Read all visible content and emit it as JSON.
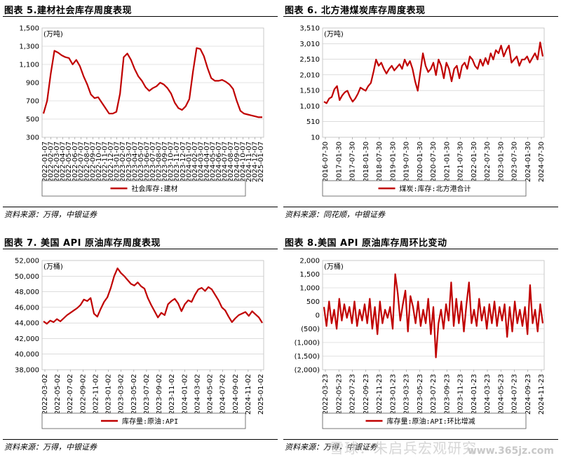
{
  "panels": [
    {
      "title": "图表 5.建材社会库存周度表现",
      "source": "资料来源：万得，中银证券",
      "chart_data": {
        "type": "line",
        "unit_label": "(万吨)",
        "yticks": [
          300,
          500,
          700,
          900,
          1100,
          1300,
          1500
        ],
        "ylim": [
          300,
          1500
        ],
        "x_tick_labels": [
          "2022-01-07",
          "2022-02-07",
          "2022-03-07",
          "2022-04-07",
          "2022-05-07",
          "2022-06-07",
          "2022-07-07",
          "2022-08-07",
          "2022-09-07",
          "2022-10-07",
          "2022-11-07",
          "2022-12-07",
          "2023-01-07",
          "2023-02-07",
          "2023-03-07",
          "2023-04-07",
          "2023-05-07",
          "2023-06-07",
          "2023-07-07",
          "2023-08-07",
          "2023-09-07",
          "2023-10-07",
          "2023-11-07",
          "2023-12-07",
          "2024-01-07",
          "2024-02-07",
          "2024-03-07",
          "2024-04-07",
          "2024-05-07",
          "2024-06-07",
          "2024-07-07",
          "2024-08-07",
          "2024-09-07",
          "2024-10-07",
          "2024-11-07",
          "2024-12-07",
          "2025-01-07"
        ],
        "series": [
          {
            "name": "社会库存:建材",
            "color": "#c00000",
            "values": [
              560,
              700,
              1000,
              1250,
              1230,
              1200,
              1180,
              1170,
              1100,
              1150,
              1080,
              970,
              880,
              770,
              730,
              740,
              680,
              620,
              560,
              560,
              580,
              780,
              1180,
              1220,
              1150,
              1050,
              970,
              920,
              850,
              810,
              840,
              860,
              900,
              880,
              840,
              780,
              680,
              620,
              600,
              640,
              720,
              1020,
              1280,
              1270,
              1190,
              1060,
              950,
              920,
              920,
              930,
              910,
              880,
              830,
              700,
              590,
              560,
              550,
              540,
              530,
              520,
              520
            ]
          }
        ],
        "legend": "社会库存:建材"
      }
    },
    {
      "title": "图表 6. 北方港煤炭库存周度表现",
      "source": "资料来源：同花顺，中银证券",
      "chart_data": {
        "type": "line",
        "unit_label": "(万吨)",
        "yticks": [
          10,
          510,
          1010,
          1510,
          2010,
          2510,
          3010,
          3510
        ],
        "ylim": [
          10,
          3510
        ],
        "x_tick_labels": [
          "2016-07-30",
          "2017-01-30",
          "2017-07-30",
          "2018-01-30",
          "2018-07-30",
          "2019-01-30",
          "2019-07-30",
          "2020-01-30",
          "2020-07-30",
          "2021-01-30",
          "2021-07-30",
          "2022-01-30",
          "2022-07-30",
          "2023-01-30",
          "2023-07-30",
          "2024-01-30",
          "2024-07-30"
        ],
        "series": [
          {
            "name": "煤炭:库存:北方港合计",
            "color": "#c00000",
            "values": [
              1150,
              1100,
              1250,
              1300,
              1550,
              1650,
              1200,
              1350,
              1450,
              1500,
              1300,
              1150,
              1250,
              1400,
              1600,
              1550,
              1500,
              1650,
              1750,
              2100,
              2500,
              2300,
              2400,
              2200,
              2050,
              2200,
              2300,
              2150,
              2250,
              2350,
              2200,
              2500,
              2300,
              2450,
              2200,
              1800,
              1500,
              2100,
              2700,
              2300,
              2100,
              2200,
              2400,
              2000,
              2500,
              2300,
              1900,
              2400,
              2200,
              1800,
              2200,
              2300,
              1900,
              2300,
              2400,
              2200,
              2600,
              2500,
              2300,
              2200,
              2500,
              2300,
              2550,
              2350,
              2700,
              2500,
              2800,
              2700,
              2950,
              2600,
              2800,
              2950,
              2400,
              2500,
              2600,
              2300,
              2500,
              2500,
              2600,
              2400,
              2550,
              2700,
              2500,
              3050,
              2600
            ]
          }
        ],
        "legend": "煤炭:库存:北方港合计"
      }
    },
    {
      "title": "图表 7. 美国 API 原油库存周度表现",
      "source": "资料来源：万得，中银证券",
      "chart_data": {
        "type": "line",
        "unit_label": "(万桶)",
        "yticks": [
          38000,
          40000,
          42000,
          44000,
          46000,
          48000,
          50000,
          52000
        ],
        "ylim": [
          38000,
          52000
        ],
        "x_tick_labels": [
          "2022-03-02",
          "2022-05-02",
          "2022-07-02",
          "2022-09-02",
          "2022-11-02",
          "2023-01-02",
          "2023-03-02",
          "2023-05-02",
          "2023-07-02",
          "2023-09-02",
          "2023-11-02",
          "2024-01-02",
          "2024-03-02",
          "2024-05-02",
          "2024-07-02",
          "2024-09-02",
          "2024-11-02",
          "2025-01-02"
        ],
        "series": [
          {
            "name": "库存量:原油:API",
            "color": "#c00000",
            "values": [
              44200,
              43900,
              44300,
              44100,
              44500,
              44200,
              44600,
              45000,
              45300,
              45600,
              45900,
              46300,
              47000,
              46800,
              47200,
              45200,
              44800,
              45800,
              46700,
              47300,
              48500,
              50000,
              51000,
              50400,
              50000,
              49500,
              49000,
              48800,
              49200,
              48700,
              48400,
              47200,
              46300,
              45500,
              44700,
              45300,
              45000,
              46400,
              46800,
              47100,
              46500,
              45500,
              46400,
              46900,
              46700,
              47600,
              48300,
              48500,
              48100,
              48600,
              48300,
              47600,
              46900,
              46000,
              45600,
              44800,
              44100,
              44600,
              45000,
              45200,
              45400,
              44900,
              45500,
              45100,
              44700,
              44000
            ]
          }
        ],
        "legend": "库存量:原油:API"
      }
    },
    {
      "title": "图表 8.美国 API 原油库存周环比变动",
      "source": "资料来源：万得，中银证券",
      "chart_data": {
        "type": "line",
        "unit_label": "(万桶)",
        "yticks": [
          "(2,000)",
          "(1,500)",
          "(1,000)",
          "(500)",
          "0",
          "500",
          "1,000",
          "1,500",
          "2,000"
        ],
        "ylim": [
          -2000,
          2000
        ],
        "x_tick_labels": [
          "2022-03-23",
          "2022-05-23",
          "2022-07-23",
          "2022-09-23",
          "2022-11-23",
          "2023-01-23",
          "2023-03-23",
          "2023-05-23",
          "2023-07-23",
          "2023-09-23",
          "2023-11-23",
          "2024-01-23",
          "2024-03-23",
          "2024-05-23",
          "2024-07-23",
          "2024-09-23",
          "2024-11-23"
        ],
        "series": [
          {
            "name": "库存量:原油:API:环比增减",
            "color": "#c00000",
            "values": [
              300,
              -400,
              500,
              -300,
              200,
              -500,
              600,
              -200,
              400,
              -100,
              300,
              -300,
              500,
              -400,
              200,
              -200,
              400,
              -300,
              600,
              -500,
              300,
              -700,
              500,
              -300,
              200,
              -100,
              300,
              -500,
              1500,
              800,
              -200,
              400,
              900,
              -600,
              700,
              300,
              -300,
              500,
              -400,
              200,
              -300,
              600,
              -700,
              300,
              -1550,
              -300,
              200,
              -500,
              400,
              -200,
              1200,
              -400,
              600,
              -300,
              500,
              -600,
              400,
              1200,
              -300,
              200,
              -400,
              600,
              -200,
              300,
              -500,
              400,
              -300,
              500,
              -400,
              300,
              -200,
              400,
              -800,
              300,
              -600,
              500,
              -300,
              200,
              -400,
              300,
              -700,
              1100,
              -300,
              200,
              -600,
              400,
              -300
            ]
          }
        ],
        "legend": "库存量:原油:API:环比增减"
      }
    }
  ],
  "watermark": {
    "text": "雪球：朱启兵宏观研究",
    "url": "www.365jz.com"
  }
}
